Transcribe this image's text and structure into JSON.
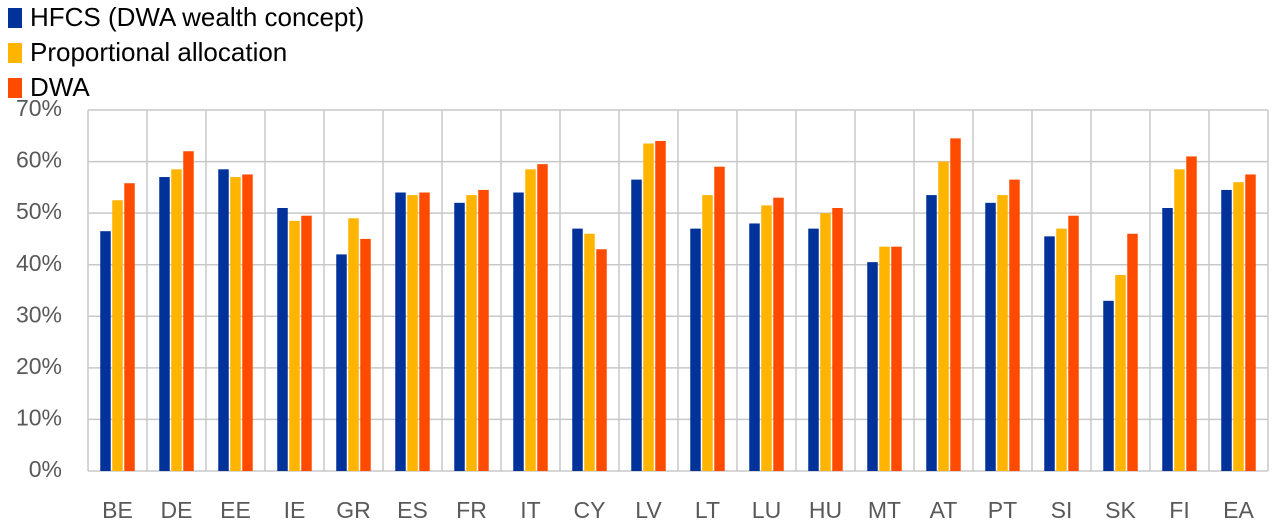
{
  "chart_data": {
    "type": "bar",
    "categories": [
      "BE",
      "DE",
      "EE",
      "IE",
      "GR",
      "ES",
      "FR",
      "IT",
      "CY",
      "LV",
      "LT",
      "LU",
      "HU",
      "MT",
      "AT",
      "PT",
      "SI",
      "SK",
      "FI",
      "EA"
    ],
    "series": [
      {
        "name": "HFCS (DWA wealth concept)",
        "color": "#003299",
        "values": [
          46.5,
          57,
          58.5,
          51,
          42,
          54,
          52,
          54,
          47,
          56.5,
          47,
          48,
          47,
          40.5,
          53.5,
          52,
          45.5,
          33,
          51,
          54.5
        ]
      },
      {
        "name": "Proportional allocation",
        "color": "#ffb400",
        "values": [
          52.5,
          58.5,
          57,
          48.5,
          49,
          53.5,
          53.5,
          58.5,
          46,
          63.5,
          53.5,
          51.5,
          50,
          43.5,
          60,
          53.5,
          47,
          38,
          58.5,
          56
        ]
      },
      {
        "name": "DWA",
        "color": "#ff4b00",
        "values": [
          55.8,
          62,
          57.5,
          49.5,
          45,
          54,
          54.5,
          59.5,
          43,
          64,
          59,
          53,
          51,
          43.5,
          64.5,
          56.5,
          49.5,
          46,
          61,
          57.5
        ]
      }
    ],
    "ylim": [
      0,
      70
    ],
    "yticks": [
      {
        "value": 0,
        "label": "0%"
      },
      {
        "value": 10,
        "label": "10%"
      },
      {
        "value": 20,
        "label": "20%"
      },
      {
        "value": 30,
        "label": "30%"
      },
      {
        "value": 40,
        "label": "40%"
      },
      {
        "value": 50,
        "label": "50%"
      },
      {
        "value": 60,
        "label": "60%"
      },
      {
        "value": 70,
        "label": "70%"
      }
    ],
    "grid": true
  }
}
